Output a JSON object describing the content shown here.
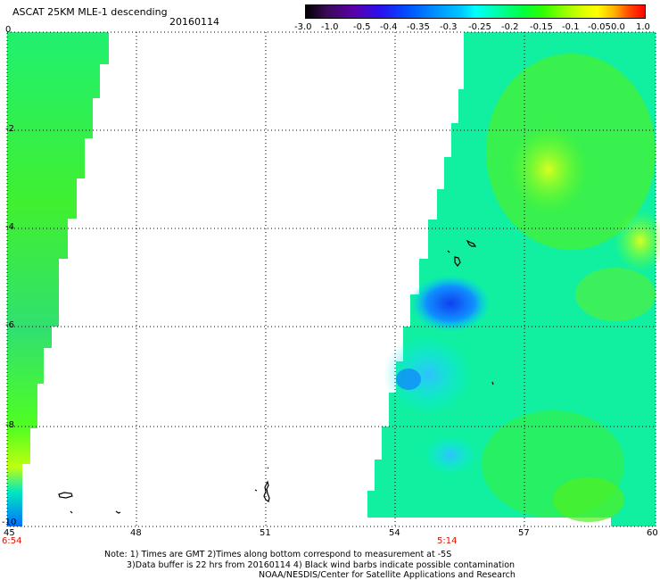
{
  "header": {
    "title": "ASCAT 25KM MLE-1 descending",
    "date": "20160114"
  },
  "colorbar": {
    "ticks": [
      "-3.0",
      "-1.0",
      "-0.5",
      "-0.4",
      "-0.35",
      "-0.3",
      "-0.25",
      "-0.2",
      "-0.15",
      "-0.1",
      "-0.05",
      "0.0",
      "1.0"
    ]
  },
  "map": {
    "x_ticks": [
      "45",
      "48",
      "51",
      "54",
      "57",
      "60"
    ],
    "y_ticks": [
      "0",
      "-2",
      "-4",
      "-6",
      "-8",
      "-10"
    ],
    "time_labels": [
      "6:54",
      "5:14"
    ],
    "colors": {
      "land_outline": "#000000",
      "grid": "#000000",
      "time_label": "#e01000"
    }
  },
  "footer": {
    "line1": "Note: 1) Times are GMT 2)Times along bottom correspond to measurement at -5S",
    "line2": "3)Data buffer is 22 hrs from 20160114 4) Black wind barbs indicate possible contamination",
    "line3": "NOAA/NESDIS/Center for Satellite Applications and Research"
  }
}
